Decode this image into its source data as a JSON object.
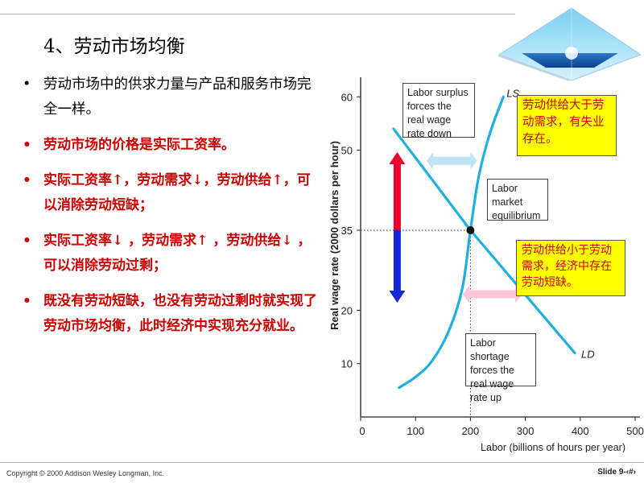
{
  "slide": {
    "title": "4、劳动市场均衡",
    "bullets": [
      {
        "text": "劳动市场中的供求力量与产品和服务市场完全一样。",
        "color": "black"
      },
      {
        "text": "劳动市场的价格是实际工资率。",
        "color": "red"
      },
      {
        "text": "实际工资率↑，劳动需求↓，劳动供给↑，可以消除劳动短缺；",
        "color": "red"
      },
      {
        "text": "实际工资率↓ ，劳动需求↑ ，劳动供给↓ ，可以消除劳动过剩；",
        "color": "red"
      },
      {
        "text": "既没有劳动短缺，也没有劳动过剩时就实现了劳动市场均衡，此时经济中实现充分就业。",
        "color": "red"
      }
    ],
    "bullet_symbol": "•",
    "copyright": "Copyright © 2000 Addison Wesley Longman, Inc.",
    "slide_number": "Slide 9-‹#›"
  },
  "notes": {
    "surplus_note": "劳动供给大于劳动需求，有失业存在。",
    "shortage_note": "劳动供给小于劳动需求，经济中存在劳动短缺。"
  },
  "callouts": {
    "surplus": "Labor surplus forces the real wage rate down",
    "equilibrium": "Labor market equilibrium",
    "shortage": "Labor shortage forces the real wage rate up"
  },
  "colors": {
    "curve": "#1fb0e0",
    "up_arrow": "#e8002a",
    "down_arrow": "#1428d8",
    "surplus_arrow": "#bfe4f8",
    "shortage_arrow": "#f8c6d6",
    "note_bg": "#ffff00",
    "note_text": "#cc0000"
  },
  "chart_data": {
    "type": "line",
    "xlabel": "Labor (billions of hours per year)",
    "ylabel": "Real wage rate (2000 dollars per hour)",
    "xlim": [
      0,
      500
    ],
    "ylim": [
      0,
      62
    ],
    "x_ticks": [
      0,
      100,
      200,
      300,
      400,
      500
    ],
    "y_ticks": [
      10,
      20,
      35,
      50,
      60
    ],
    "series": [
      {
        "name": "LS",
        "points": [
          [
            70,
            5.5
          ],
          [
            100,
            7.5
          ],
          [
            130,
            10.5
          ],
          [
            160,
            16
          ],
          [
            185,
            24
          ],
          [
            200,
            35
          ],
          [
            215,
            45
          ],
          [
            235,
            53
          ],
          [
            260,
            60
          ]
        ]
      },
      {
        "name": "LD",
        "points": [
          [
            60,
            54
          ],
          [
            200,
            35
          ],
          [
            390,
            12
          ]
        ]
      }
    ],
    "equilibrium": {
      "x": 200,
      "y": 35
    }
  }
}
